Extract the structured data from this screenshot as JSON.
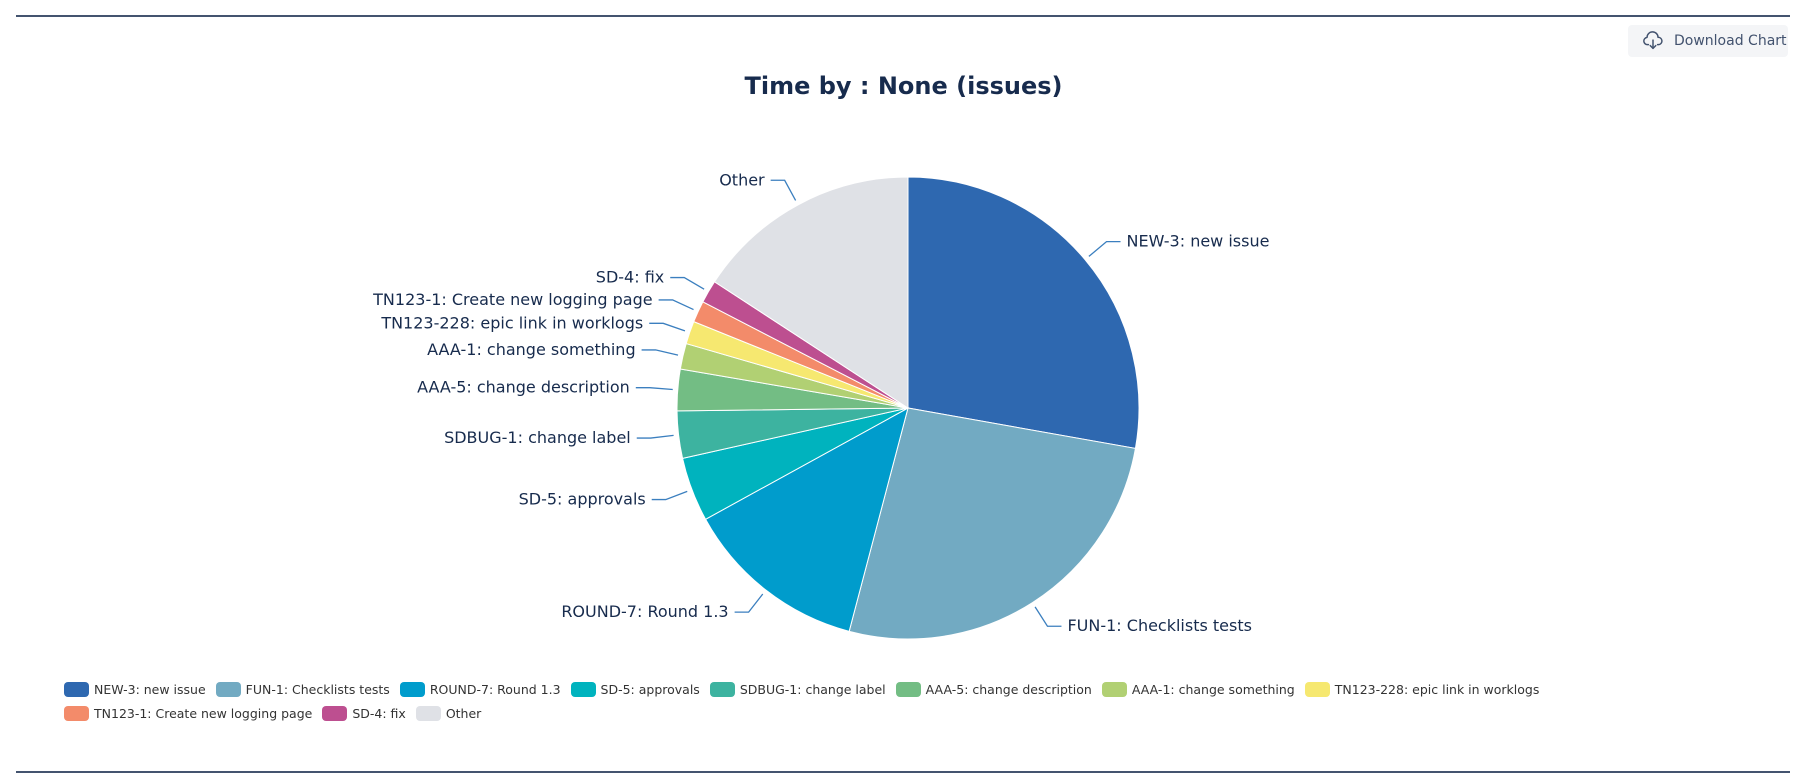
{
  "header": {
    "download_label": "Download Chart",
    "download_icon": "cloud-download-icon"
  },
  "chart_data": {
    "type": "pie",
    "title": "Time by : None (issues)",
    "legend_position": "bottom",
    "slices": [
      {
        "label": "NEW-3: new issue",
        "value": 27.8,
        "color": "#2e68b0"
      },
      {
        "label": "FUN-1: Checklists tests",
        "value": 26.3,
        "color": "#72aac2"
      },
      {
        "label": "ROUND-7: Round 1.3",
        "value": 12.9,
        "color": "#009ccc"
      },
      {
        "label": "SD-5: approvals",
        "value": 4.5,
        "color": "#00b3be"
      },
      {
        "label": "SDBUG-1: change label",
        "value": 3.3,
        "color": "#3db3a0"
      },
      {
        "label": "AAA-5: change description",
        "value": 2.9,
        "color": "#73bd84"
      },
      {
        "label": "AAA-1: change something",
        "value": 1.8,
        "color": "#b1d073"
      },
      {
        "label": "TN123-228: epic link in worklogs",
        "value": 1.6,
        "color": "#f6e870"
      },
      {
        "label": "TN123-1: Create new logging page",
        "value": 1.5,
        "color": "#f38b6a"
      },
      {
        "label": "SD-4: fix",
        "value": 1.6,
        "color": "#bd4f90"
      },
      {
        "label": "Other",
        "value": 15.8,
        "color": "#dfe1e6"
      }
    ]
  }
}
